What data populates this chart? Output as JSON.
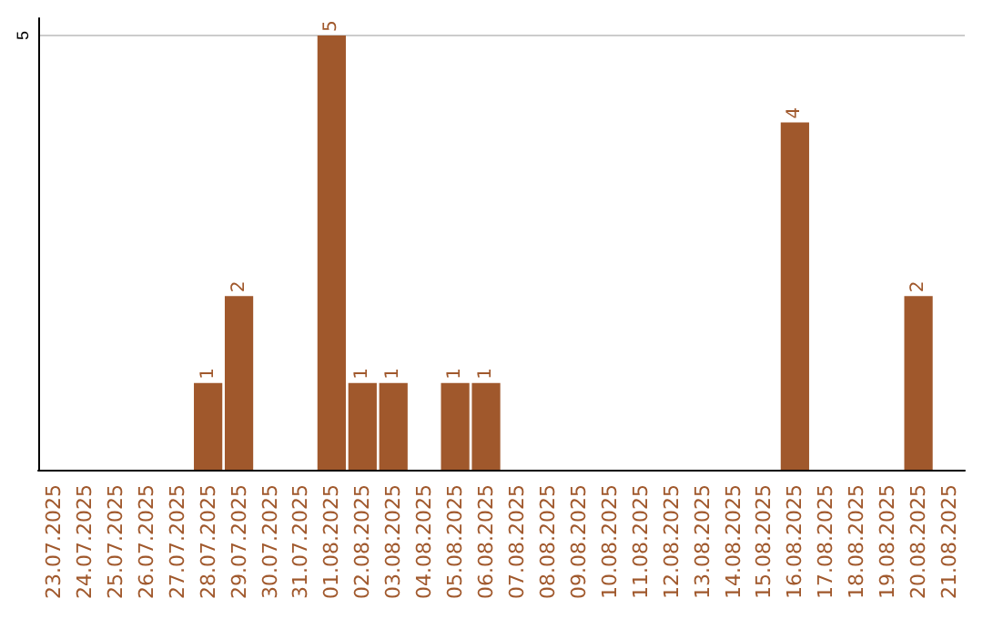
{
  "chart_data": {
    "type": "bar",
    "categories": [
      "23.07.2025",
      "24.07.2025",
      "25.07.2025",
      "26.07.2025",
      "27.07.2025",
      "28.07.2025",
      "29.07.2025",
      "30.07.2025",
      "31.07.2025",
      "01.08.2025",
      "02.08.2025",
      "03.08.2025",
      "04.08.2025",
      "05.08.2025",
      "06.08.2025",
      "07.08.2025",
      "08.08.2025",
      "09.08.2025",
      "10.08.2025",
      "11.08.2025",
      "12.08.2025",
      "13.08.2025",
      "14.08.2025",
      "15.08.2025",
      "16.08.2025",
      "17.08.2025",
      "18.08.2025",
      "19.08.2025",
      "20.08.2025",
      "21.08.2025"
    ],
    "values": [
      null,
      null,
      null,
      null,
      null,
      1,
      2,
      null,
      null,
      5,
      1,
      1,
      null,
      1,
      1,
      null,
      null,
      null,
      null,
      null,
      null,
      null,
      null,
      null,
      4,
      null,
      null,
      null,
      2,
      null
    ],
    "color": "#a0582c",
    "ylim": [
      0,
      5.2
    ],
    "yticks": [
      5
    ],
    "grid": "y",
    "data_labels": true
  }
}
